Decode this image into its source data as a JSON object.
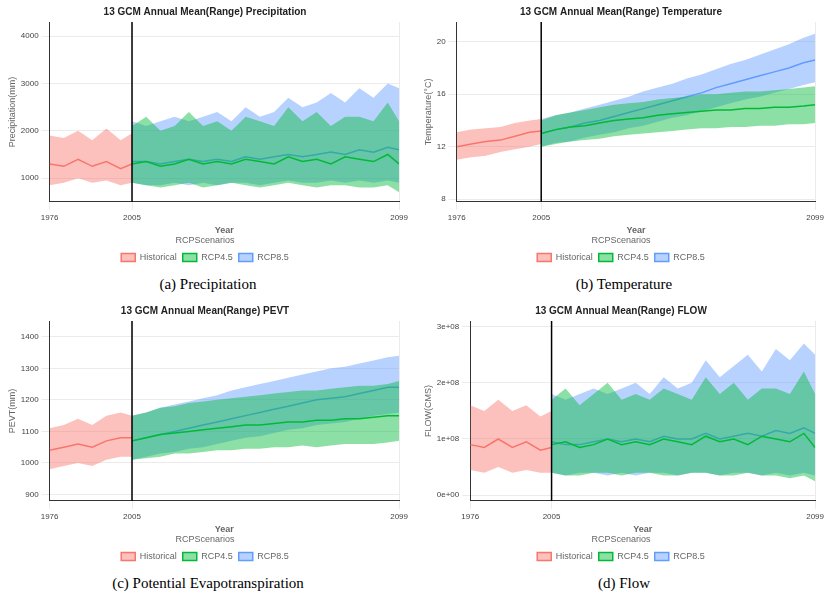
{
  "chart_data": [
    {
      "type": "line",
      "title": "13 GCM Annual Mean(Range) Precipitation",
      "caption": "(a) Precipitation",
      "xlabel": "Year",
      "ylabel": "Precipitation(mm)",
      "legend": "bottom",
      "legend_title": "RCPScenarios",
      "grid": true,
      "xlim": [
        1976,
        2099
      ],
      "xticks": [
        1976,
        2005,
        2099
      ],
      "ylim": [
        500,
        4300
      ],
      "yticks": [
        1000,
        2000,
        3000,
        4000
      ],
      "vline": 2005,
      "series": [
        {
          "name": "Historical",
          "color": "#F8766D",
          "x": [
            1976,
            1981,
            1986,
            1991,
            1996,
            2001,
            2005
          ],
          "values": [
            1300,
            1250,
            1400,
            1250,
            1350,
            1200,
            1300
          ],
          "low": [
            850,
            900,
            1000,
            900,
            950,
            850,
            900
          ],
          "high": [
            1900,
            1850,
            2000,
            1800,
            2050,
            1800,
            1950
          ]
        },
        {
          "name": "RCP4.5",
          "color": "#00BA38",
          "x": [
            2005,
            2010,
            2015,
            2020,
            2025,
            2030,
            2035,
            2040,
            2045,
            2050,
            2055,
            2060,
            2065,
            2070,
            2075,
            2080,
            2085,
            2090,
            2095,
            2099
          ],
          "values": [
            1300,
            1350,
            1250,
            1300,
            1400,
            1300,
            1350,
            1300,
            1400,
            1350,
            1300,
            1450,
            1350,
            1400,
            1300,
            1450,
            1400,
            1350,
            1500,
            1300
          ],
          "low": [
            900,
            850,
            800,
            850,
            900,
            800,
            850,
            900,
            850,
            800,
            850,
            900,
            850,
            800,
            850,
            850,
            800,
            800,
            850,
            700
          ],
          "high": [
            2100,
            2300,
            2000,
            2100,
            2400,
            2100,
            2200,
            2000,
            2300,
            2200,
            2100,
            2500,
            2200,
            2400,
            2100,
            2300,
            2300,
            2200,
            2600,
            2200
          ]
        },
        {
          "name": "RCP8.5",
          "color": "#619CFF",
          "x": [
            2005,
            2010,
            2015,
            2020,
            2025,
            2030,
            2035,
            2040,
            2045,
            2050,
            2055,
            2060,
            2065,
            2070,
            2075,
            2080,
            2085,
            2090,
            2095,
            2099
          ],
          "values": [
            1350,
            1350,
            1300,
            1350,
            1400,
            1350,
            1400,
            1350,
            1450,
            1400,
            1450,
            1500,
            1450,
            1500,
            1550,
            1500,
            1600,
            1550,
            1650,
            1600
          ],
          "low": [
            900,
            850,
            850,
            900,
            850,
            900,
            850,
            900,
            900,
            850,
            900,
            950,
            900,
            900,
            950,
            900,
            950,
            900,
            950,
            900
          ],
          "high": [
            2200,
            2100,
            2200,
            2300,
            2200,
            2300,
            2400,
            2200,
            2500,
            2300,
            2400,
            2700,
            2500,
            2600,
            2800,
            2600,
            2900,
            2700,
            3000,
            2900
          ]
        }
      ]
    },
    {
      "type": "line",
      "title": "13 GCM Annual Mean(Range) Temperature",
      "caption": "(b) Temperature",
      "xlabel": "Year",
      "ylabel": "Temperature(°C)",
      "legend": "bottom",
      "legend_title": "RCPScenarios",
      "grid": true,
      "xlim": [
        1976,
        2099
      ],
      "xticks": [
        1976,
        2005,
        2099
      ],
      "ylim": [
        7.8,
        21.5
      ],
      "yticks": [
        8,
        12,
        16,
        20
      ],
      "vline": 2005,
      "series": [
        {
          "name": "Historical",
          "color": "#F8766D",
          "x": [
            1976,
            1981,
            1986,
            1991,
            1996,
            2001,
            2005
          ],
          "values": [
            12.0,
            12.2,
            12.4,
            12.5,
            12.8,
            13.1,
            13.2
          ],
          "low": [
            11.0,
            11.2,
            11.3,
            11.6,
            11.8,
            12.0,
            12.2
          ],
          "high": [
            13.1,
            13.3,
            13.4,
            13.5,
            13.8,
            14.0,
            14.1
          ]
        },
        {
          "name": "RCP4.5",
          "color": "#00BA38",
          "x": [
            2005,
            2010,
            2015,
            2020,
            2025,
            2030,
            2035,
            2040,
            2045,
            2050,
            2055,
            2060,
            2065,
            2070,
            2075,
            2080,
            2085,
            2090,
            2095,
            2099
          ],
          "values": [
            13.0,
            13.3,
            13.5,
            13.6,
            13.8,
            14.0,
            14.1,
            14.2,
            14.4,
            14.5,
            14.6,
            14.7,
            14.8,
            14.8,
            14.9,
            14.9,
            15.0,
            15.0,
            15.1,
            15.2
          ],
          "low": [
            12.0,
            12.2,
            12.4,
            12.5,
            12.6,
            12.8,
            12.9,
            13.0,
            13.1,
            13.2,
            13.3,
            13.4,
            13.4,
            13.5,
            13.5,
            13.6,
            13.6,
            13.7,
            13.7,
            13.8
          ],
          "high": [
            14.0,
            14.4,
            14.6,
            14.8,
            15.0,
            15.2,
            15.3,
            15.4,
            15.6,
            15.7,
            15.8,
            16.0,
            16.0,
            16.1,
            16.2,
            16.2,
            16.3,
            16.4,
            16.5,
            16.6
          ]
        },
        {
          "name": "RCP8.5",
          "color": "#619CFF",
          "x": [
            2005,
            2010,
            2015,
            2020,
            2025,
            2030,
            2035,
            2040,
            2045,
            2050,
            2055,
            2060,
            2065,
            2070,
            2075,
            2080,
            2085,
            2090,
            2095,
            2099
          ],
          "values": [
            13.0,
            13.3,
            13.5,
            13.8,
            14.0,
            14.3,
            14.6,
            14.9,
            15.2,
            15.5,
            15.8,
            16.1,
            16.5,
            16.8,
            17.1,
            17.4,
            17.7,
            18.0,
            18.4,
            18.6
          ],
          "low": [
            12.0,
            12.3,
            12.4,
            12.7,
            12.9,
            13.1,
            13.4,
            13.6,
            13.9,
            14.2,
            14.4,
            14.7,
            15.0,
            15.3,
            15.6,
            15.8,
            16.1,
            16.4,
            16.7,
            16.9
          ],
          "high": [
            14.1,
            14.4,
            14.6,
            14.9,
            15.2,
            15.5,
            15.8,
            16.2,
            16.5,
            16.8,
            17.2,
            17.5,
            17.9,
            18.3,
            18.6,
            19.0,
            19.4,
            19.8,
            20.3,
            20.6
          ]
        }
      ]
    },
    {
      "type": "line",
      "title": "13 GCM Annual Mean(Range) PEVT",
      "caption": "(c) Potential Evapotranspiration",
      "xlabel": "Year",
      "ylabel": "PEVT(mm)",
      "legend": "bottom",
      "legend_title": "RCPScenarios",
      "grid": true,
      "xlim": [
        1976,
        2099
      ],
      "xticks": [
        1976,
        2005,
        2099
      ],
      "ylim": [
        880,
        1450
      ],
      "yticks": [
        900,
        1000,
        1100,
        1200,
        1300,
        1400
      ],
      "vline": 2005,
      "series": [
        {
          "name": "Historical",
          "color": "#F8766D",
          "x": [
            1976,
            1981,
            1986,
            1991,
            1996,
            2001,
            2005
          ],
          "values": [
            1040,
            1050,
            1060,
            1050,
            1070,
            1080,
            1080
          ],
          "low": [
            980,
            990,
            1000,
            990,
            1010,
            1020,
            1020
          ],
          "high": [
            1110,
            1120,
            1140,
            1120,
            1150,
            1160,
            1150
          ]
        },
        {
          "name": "RCP4.5",
          "color": "#00BA38",
          "x": [
            2005,
            2010,
            2015,
            2020,
            2025,
            2030,
            2035,
            2040,
            2045,
            2050,
            2055,
            2060,
            2065,
            2070,
            2075,
            2080,
            2085,
            2090,
            2095,
            2099
          ],
          "values": [
            1070,
            1080,
            1090,
            1095,
            1100,
            1105,
            1110,
            1115,
            1120,
            1120,
            1125,
            1130,
            1130,
            1135,
            1135,
            1140,
            1140,
            1145,
            1150,
            1150
          ],
          "low": [
            1010,
            1015,
            1020,
            1030,
            1030,
            1035,
            1040,
            1040,
            1045,
            1045,
            1050,
            1050,
            1055,
            1050,
            1055,
            1060,
            1060,
            1060,
            1065,
            1070
          ],
          "high": [
            1150,
            1160,
            1175,
            1180,
            1190,
            1195,
            1200,
            1205,
            1210,
            1215,
            1220,
            1225,
            1230,
            1230,
            1235,
            1240,
            1245,
            1245,
            1250,
            1260
          ]
        },
        {
          "name": "RCP8.5",
          "color": "#619CFF",
          "x": [
            2005,
            2010,
            2015,
            2020,
            2025,
            2030,
            2035,
            2040,
            2045,
            2050,
            2055,
            2060,
            2065,
            2070,
            2075,
            2080,
            2085,
            2090,
            2095,
            2099
          ],
          "values": [
            1070,
            1080,
            1090,
            1100,
            1110,
            1120,
            1130,
            1140,
            1150,
            1160,
            1170,
            1180,
            1190,
            1200,
            1205,
            1210,
            1220,
            1230,
            1240,
            1240
          ],
          "low": [
            1010,
            1020,
            1030,
            1035,
            1045,
            1050,
            1060,
            1070,
            1080,
            1085,
            1095,
            1105,
            1110,
            1120,
            1125,
            1130,
            1140,
            1150,
            1155,
            1160
          ],
          "high": [
            1150,
            1160,
            1175,
            1185,
            1195,
            1205,
            1215,
            1230,
            1240,
            1250,
            1260,
            1270,
            1280,
            1290,
            1300,
            1305,
            1315,
            1325,
            1335,
            1340
          ]
        }
      ]
    },
    {
      "type": "line",
      "title": "13 GCM Annual Mean(Range) FLOW",
      "caption": "(d) Flow",
      "xlabel": "Year",
      "ylabel": "FLOW(CMS)",
      "legend": "bottom",
      "legend_title": "RCPScenarios",
      "grid": true,
      "xlim": [
        1976,
        2099
      ],
      "xticks": [
        1976,
        2005,
        2099
      ],
      "ylim": [
        -10000000,
        310000000
      ],
      "yticks": [
        {
          "value": 0,
          "label": "0e+00"
        },
        {
          "value": 100000000,
          "label": "1e+08"
        },
        {
          "value": 200000000,
          "label": "2e+08"
        },
        {
          "value": 300000000,
          "label": "3e+08"
        }
      ],
      "vline": 2005,
      "series": [
        {
          "name": "Historical",
          "color": "#F8766D",
          "x": [
            1976,
            1981,
            1986,
            1991,
            1996,
            2001,
            2005
          ],
          "values": [
            90000000,
            85000000,
            100000000,
            85000000,
            95000000,
            80000000,
            85000000
          ],
          "low": [
            45000000,
            40000000,
            50000000,
            40000000,
            45000000,
            40000000,
            40000000
          ],
          "high": [
            160000000,
            150000000,
            170000000,
            150000000,
            160000000,
            140000000,
            150000000
          ]
        },
        {
          "name": "RCP4.5",
          "color": "#00BA38",
          "x": [
            2005,
            2010,
            2015,
            2020,
            2025,
            2030,
            2035,
            2040,
            2045,
            2050,
            2055,
            2060,
            2065,
            2070,
            2075,
            2080,
            2085,
            2090,
            2095,
            2099
          ],
          "values": [
            90000000,
            95000000,
            85000000,
            90000000,
            100000000,
            90000000,
            95000000,
            90000000,
            100000000,
            95000000,
            90000000,
            105000000,
            95000000,
            100000000,
            90000000,
            105000000,
            100000000,
            95000000,
            110000000,
            85000000
          ],
          "low": [
            40000000,
            35000000,
            35000000,
            40000000,
            40000000,
            35000000,
            40000000,
            40000000,
            35000000,
            35000000,
            40000000,
            40000000,
            35000000,
            35000000,
            40000000,
            35000000,
            35000000,
            30000000,
            35000000,
            25000000
          ],
          "high": [
            170000000,
            190000000,
            160000000,
            180000000,
            200000000,
            170000000,
            180000000,
            170000000,
            190000000,
            180000000,
            170000000,
            210000000,
            180000000,
            200000000,
            170000000,
            190000000,
            190000000,
            180000000,
            220000000,
            180000000
          ]
        },
        {
          "name": "RCP8.5",
          "color": "#619CFF",
          "x": [
            2005,
            2010,
            2015,
            2020,
            2025,
            2030,
            2035,
            2040,
            2045,
            2050,
            2055,
            2060,
            2065,
            2070,
            2075,
            2080,
            2085,
            2090,
            2095,
            2099
          ],
          "values": [
            95000000,
            90000000,
            90000000,
            95000000,
            100000000,
            95000000,
            100000000,
            95000000,
            105000000,
            100000000,
            100000000,
            110000000,
            100000000,
            105000000,
            110000000,
            105000000,
            115000000,
            110000000,
            120000000,
            110000000
          ],
          "low": [
            40000000,
            35000000,
            40000000,
            40000000,
            35000000,
            40000000,
            35000000,
            40000000,
            40000000,
            35000000,
            40000000,
            40000000,
            35000000,
            40000000,
            40000000,
            35000000,
            40000000,
            35000000,
            40000000,
            35000000
          ],
          "high": [
            180000000,
            170000000,
            180000000,
            190000000,
            180000000,
            190000000,
            200000000,
            180000000,
            210000000,
            190000000,
            200000000,
            240000000,
            210000000,
            230000000,
            250000000,
            220000000,
            260000000,
            240000000,
            270000000,
            250000000
          ]
        }
      ]
    }
  ]
}
